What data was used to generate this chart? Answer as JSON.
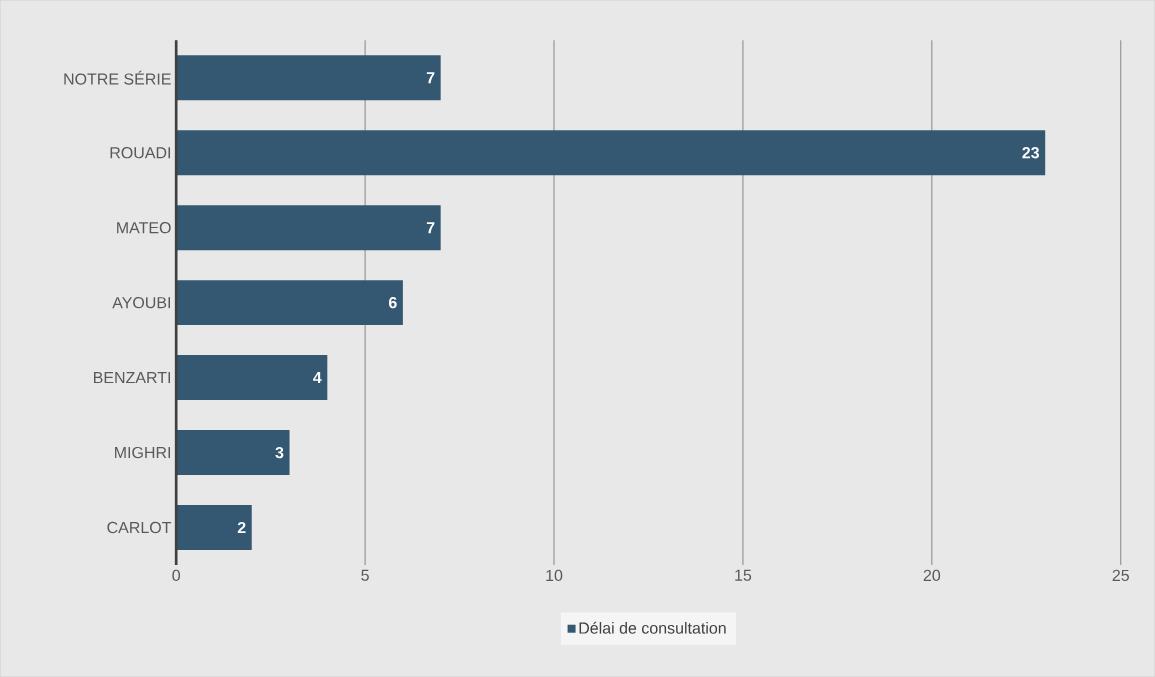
{
  "chart_data": {
    "type": "bar",
    "orientation": "horizontal",
    "categories": [
      "NOTRE SÉRIE",
      "ROUADI",
      "MATEO",
      "AYOUBI",
      "BENZARTI",
      "MIGHRI",
      "CARLOT"
    ],
    "series": [
      {
        "name": "Délai de consultation",
        "color": "#355872",
        "values": [
          7,
          23,
          7,
          6,
          4,
          3,
          2
        ]
      }
    ],
    "xlim": [
      0,
      25
    ],
    "xticks": [
      0,
      5,
      10,
      15,
      20,
      25
    ],
    "grid": "x",
    "legend": "bottom",
    "data_labels": true
  }
}
